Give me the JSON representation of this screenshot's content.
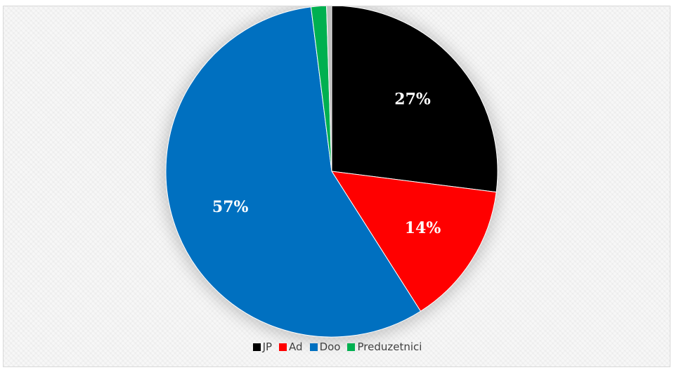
{
  "chart_data": {
    "type": "pie",
    "title": "",
    "categories": [
      "JP",
      "Ad",
      "Doo",
      "Preduzetnici",
      ""
    ],
    "values": [
      27,
      14,
      57,
      1.5,
      0.5
    ],
    "labels": [
      "27%",
      "14%",
      "57%",
      "",
      ""
    ],
    "colors": [
      "#000000",
      "#ff0000",
      "#0070c0",
      "#00b050",
      "#bfbfbf"
    ],
    "legend": {
      "placement": "bottom",
      "entries": [
        "JP",
        "Ad",
        "Doo",
        "Preduzetnici"
      ]
    }
  }
}
